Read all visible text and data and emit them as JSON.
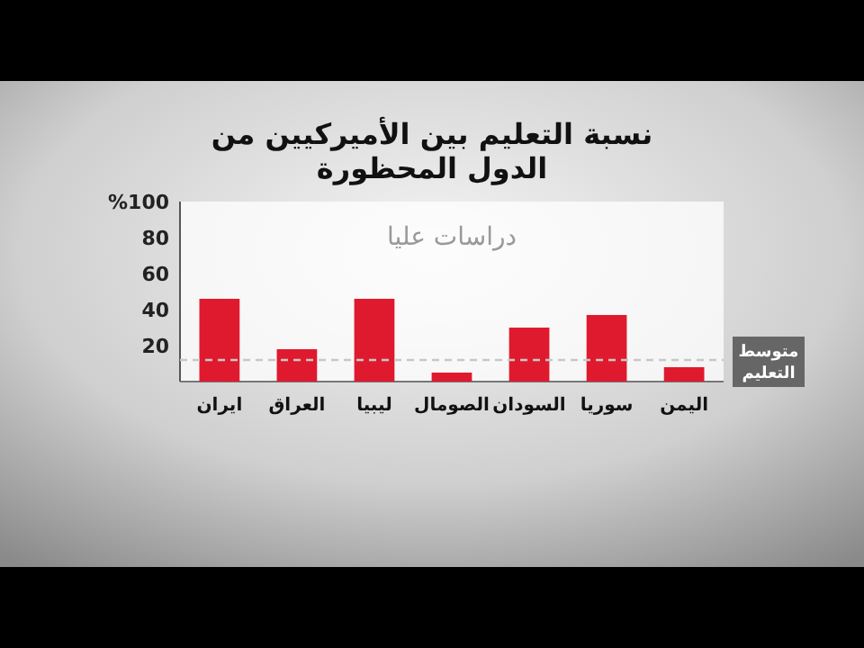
{
  "chart_data": {
    "type": "bar",
    "title": "نسبة التعليم بين الأميركيين من الدول المحظورة",
    "categories": [
      "ايران",
      "العراق",
      "ليبيا",
      "الصومال",
      "السودان",
      "سوريا",
      "اليمن"
    ],
    "values": [
      46,
      18,
      46,
      5,
      30,
      37,
      8
    ],
    "color": "#e01a2e",
    "ylim": [
      0,
      100
    ],
    "yticks": [
      20,
      40,
      60,
      80,
      {
        "value": 100,
        "label": "%100"
      }
    ],
    "annotations": [
      "دراسات عليا"
    ],
    "ref_lines": [
      {
        "axis": "y",
        "value": 12,
        "label": "متوسط التعليم",
        "color": "#c8c8c8",
        "line_style": "dashed"
      }
    ],
    "grid": false
  }
}
